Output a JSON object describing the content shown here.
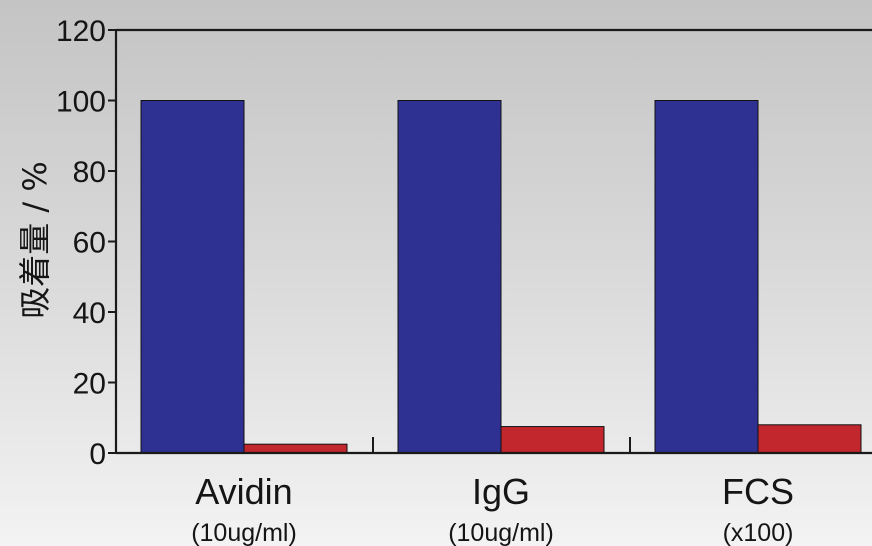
{
  "chart_data": {
    "type": "bar",
    "title": "",
    "xlabel": "",
    "ylabel": "吸着量 / %",
    "ylim": [
      0,
      120
    ],
    "yticks": [
      0,
      20,
      40,
      60,
      80,
      100,
      120
    ],
    "grid": false,
    "categories": [
      "Avidin",
      "IgG",
      "FCS"
    ],
    "category_sublabels": [
      "(10ug/ml)",
      "(10ug/ml)",
      "(x100)"
    ],
    "series": [
      {
        "values": [
          100,
          100,
          100
        ],
        "color": "#2e3192"
      },
      {
        "values": [
          2.5,
          7.5,
          8
        ],
        "color": "#c1272d"
      }
    ]
  },
  "colors": {
    "axis": "#1a1a1a",
    "text": "#151515"
  }
}
